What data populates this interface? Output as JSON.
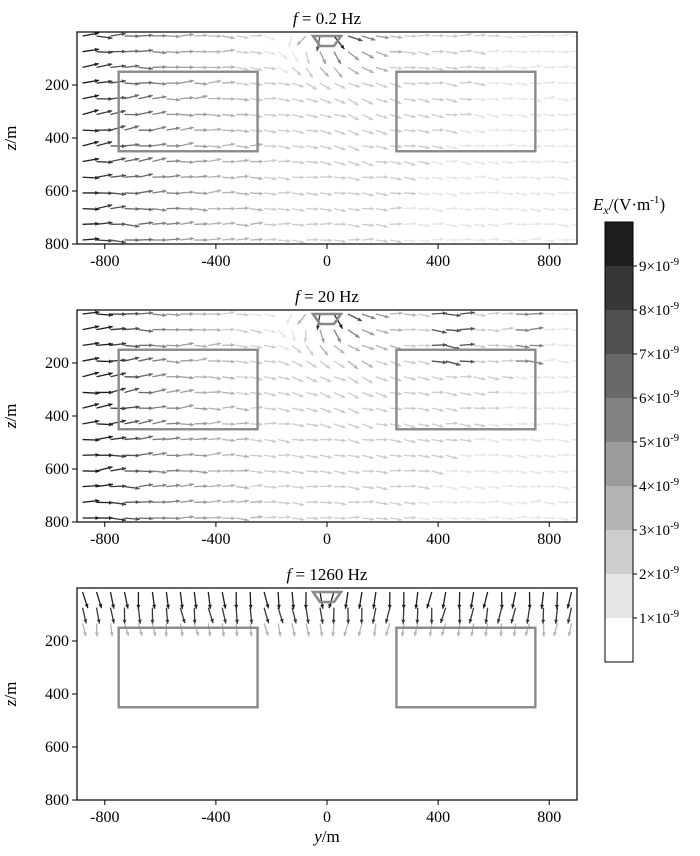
{
  "chart_data": [
    {
      "type": "quiver",
      "title": "f = 0.2 Hz",
      "title_var": "f",
      "title_rest": "= 0.2 Hz",
      "xlabel": "",
      "ylabel": "z/m",
      "ylabel_var": "z",
      "ylabel_unit": "/m",
      "xlim": [
        -900,
        900
      ],
      "ylim": [
        800,
        0
      ],
      "y_inverted": true,
      "xticks": [
        -800,
        -400,
        0,
        400,
        800
      ],
      "yticks": [
        200,
        400,
        600,
        800
      ],
      "xtick_labels": [
        "-800",
        "-400",
        "0",
        "400",
        "800"
      ],
      "ytick_labels": [
        "200",
        "400",
        "600",
        "800"
      ],
      "regions": [
        {
          "y_range": [
            -750,
            -250
          ],
          "z_range": [
            150,
            450
          ]
        },
        {
          "y_range": [
            250,
            750
          ],
          "z_range": [
            150,
            450
          ]
        }
      ],
      "source_marker": {
        "y": 0,
        "z": 0
      },
      "field_pattern": "low-frequency"
    },
    {
      "type": "quiver",
      "title": "f = 20 Hz",
      "title_var": "f",
      "title_rest": "= 20 Hz",
      "xlabel": "",
      "ylabel": "z/m",
      "ylabel_var": "z",
      "ylabel_unit": "/m",
      "xlim": [
        -900,
        900
      ],
      "ylim": [
        800,
        0
      ],
      "y_inverted": true,
      "xticks": [
        -800,
        -400,
        0,
        400,
        800
      ],
      "yticks": [
        200,
        400,
        600,
        800
      ],
      "xtick_labels": [
        "-800",
        "-400",
        "0",
        "400",
        "800"
      ],
      "ytick_labels": [
        "200",
        "400",
        "600",
        "800"
      ],
      "regions": [
        {
          "y_range": [
            -750,
            -250
          ],
          "z_range": [
            150,
            450
          ]
        },
        {
          "y_range": [
            250,
            750
          ],
          "z_range": [
            150,
            450
          ]
        }
      ],
      "source_marker": {
        "y": 0,
        "z": 0
      },
      "field_pattern": "mid-frequency"
    },
    {
      "type": "quiver",
      "title": "f = 1260 Hz",
      "title_var": "f",
      "title_rest": "= 1260 Hz",
      "xlabel": "y/m",
      "xlabel_var": "y",
      "xlabel_unit": "/m",
      "ylabel": "z/m",
      "ylabel_var": "z",
      "ylabel_unit": "/m",
      "xlim": [
        -900,
        900
      ],
      "ylim": [
        800,
        0
      ],
      "y_inverted": true,
      "xticks": [
        -800,
        -400,
        0,
        400,
        800
      ],
      "yticks": [
        200,
        400,
        600,
        800
      ],
      "xtick_labels": [
        "-800",
        "-400",
        "0",
        "400",
        "800"
      ],
      "ytick_labels": [
        "200",
        "400",
        "600",
        "800"
      ],
      "regions": [
        {
          "y_range": [
            -750,
            -250
          ],
          "z_range": [
            150,
            450
          ]
        },
        {
          "y_range": [
            250,
            750
          ],
          "z_range": [
            150,
            450
          ]
        }
      ],
      "source_marker": {
        "y": 0,
        "z": 0
      },
      "field_pattern": "high-frequency"
    }
  ],
  "colorbar": {
    "label_var": "E",
    "label_sub": "x",
    "label_rest": "/(V·m",
    "label_sup": "-1",
    "label_close": ")",
    "min": 0,
    "max": 1e-08,
    "levels": 10,
    "colors": [
      "#ffffff",
      "#e6e6e6",
      "#cdcdcd",
      "#b4b4b4",
      "#9b9b9b",
      "#828282",
      "#696969",
      "#505050",
      "#373737",
      "#1e1e1e"
    ],
    "ticks": [
      {
        "value": 1e-09,
        "mantissa": "1×10",
        "exp": "-9"
      },
      {
        "value": 2e-09,
        "mantissa": "2×10",
        "exp": "-9"
      },
      {
        "value": 3e-09,
        "mantissa": "3×10",
        "exp": "-9"
      },
      {
        "value": 4e-09,
        "mantissa": "4×10",
        "exp": "-9"
      },
      {
        "value": 5e-09,
        "mantissa": "5×10",
        "exp": "-9"
      },
      {
        "value": 6e-09,
        "mantissa": "6×10",
        "exp": "-9"
      },
      {
        "value": 7e-09,
        "mantissa": "7×10",
        "exp": "-9"
      },
      {
        "value": 8e-09,
        "mantissa": "8×10",
        "exp": "-9"
      },
      {
        "value": 9e-09,
        "mantissa": "9×10",
        "exp": "-9"
      }
    ]
  },
  "colors": {
    "region_outline": "#8a8a8a",
    "axis": "#000000"
  }
}
